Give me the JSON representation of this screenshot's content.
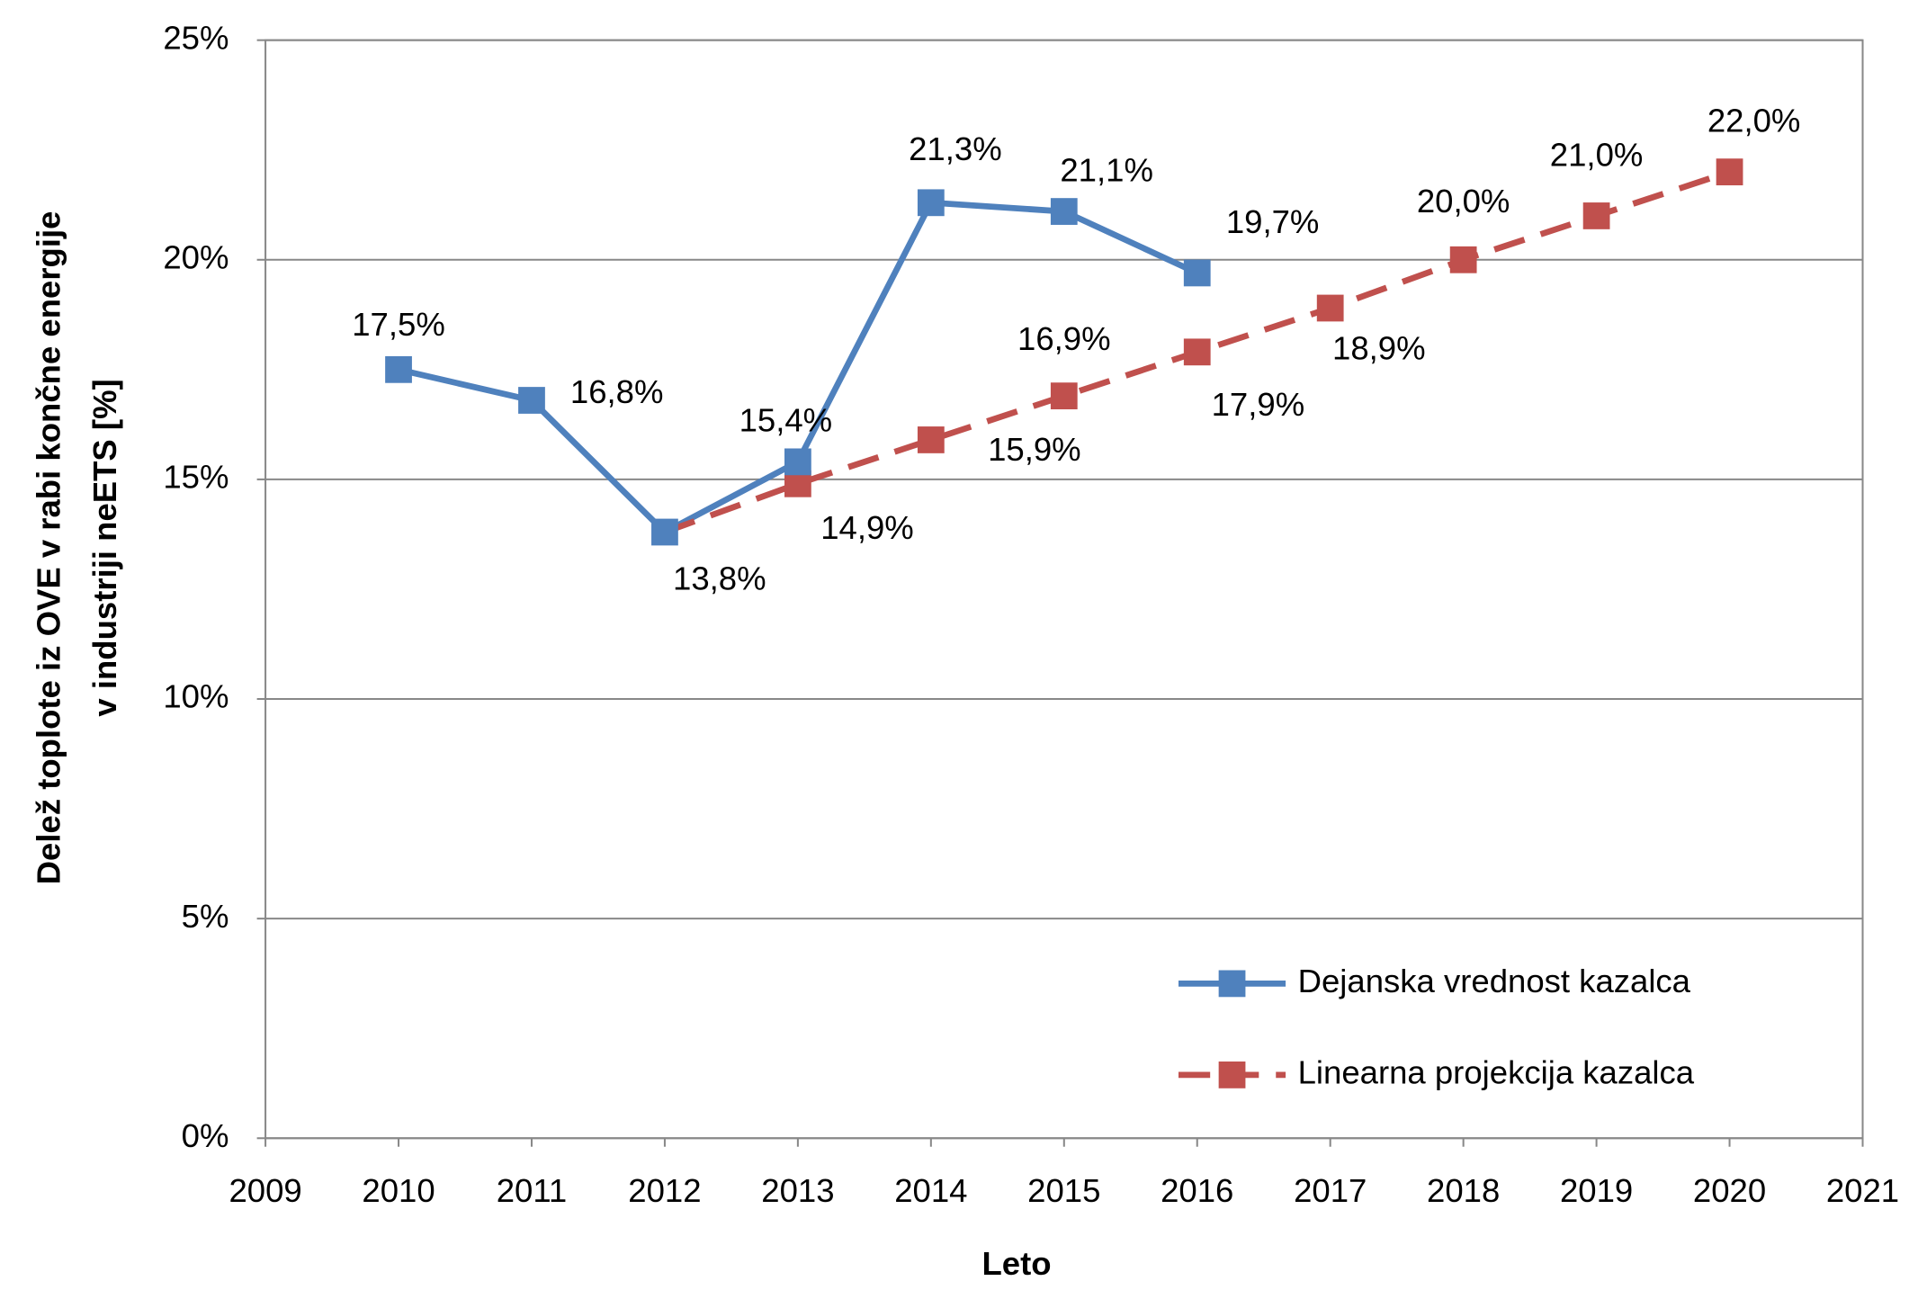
{
  "chart_data": {
    "type": "line",
    "xlabel": "Leto",
    "ylabel": [
      "Delež toplote iz OVE v rabi končne energije",
      "v industriji neETS [%]"
    ],
    "series": [
      {
        "name": "Dejanska vrednost kazalca",
        "color": "#4f81bd",
        "dash": false,
        "x": [
          2010,
          2011,
          2012,
          2013,
          2014,
          2015,
          2016
        ],
        "values": [
          17.5,
          16.8,
          13.8,
          15.4,
          21.3,
          21.1,
          19.7
        ],
        "value_labels": [
          "17,5%",
          "16,8%",
          "13,8%",
          "15,4%",
          "21,3%",
          "21,1%",
          "19,7%"
        ]
      },
      {
        "name": "Linearna projekcija kazalca",
        "color": "#c0504d",
        "dash": true,
        "x": [
          2012,
          2013,
          2014,
          2015,
          2016,
          2017,
          2018,
          2019,
          2020
        ],
        "values": [
          13.8,
          14.9,
          15.9,
          16.9,
          17.9,
          18.9,
          20.0,
          21.0,
          22.0
        ],
        "value_labels": [
          null,
          "14,9%",
          "15,9%",
          "16,9%",
          "17,9%",
          "18,9%",
          "20,0%",
          "21,0%",
          "22,0%"
        ]
      }
    ],
    "xlim": [
      2009,
      2021
    ],
    "xticks": [
      2009,
      2010,
      2011,
      2012,
      2013,
      2014,
      2015,
      2016,
      2017,
      2018,
      2019,
      2020,
      2021
    ],
    "ylim": [
      0,
      25
    ],
    "yticks": [
      {
        "value": 0,
        "label": "0%"
      },
      {
        "value": 5,
        "label": "5%"
      },
      {
        "value": 10,
        "label": "10%"
      },
      {
        "value": 15,
        "label": "15%"
      },
      {
        "value": 20,
        "label": "20%"
      },
      {
        "value": 25,
        "label": "25%"
      }
    ],
    "grid": true,
    "legend": "lower right"
  }
}
